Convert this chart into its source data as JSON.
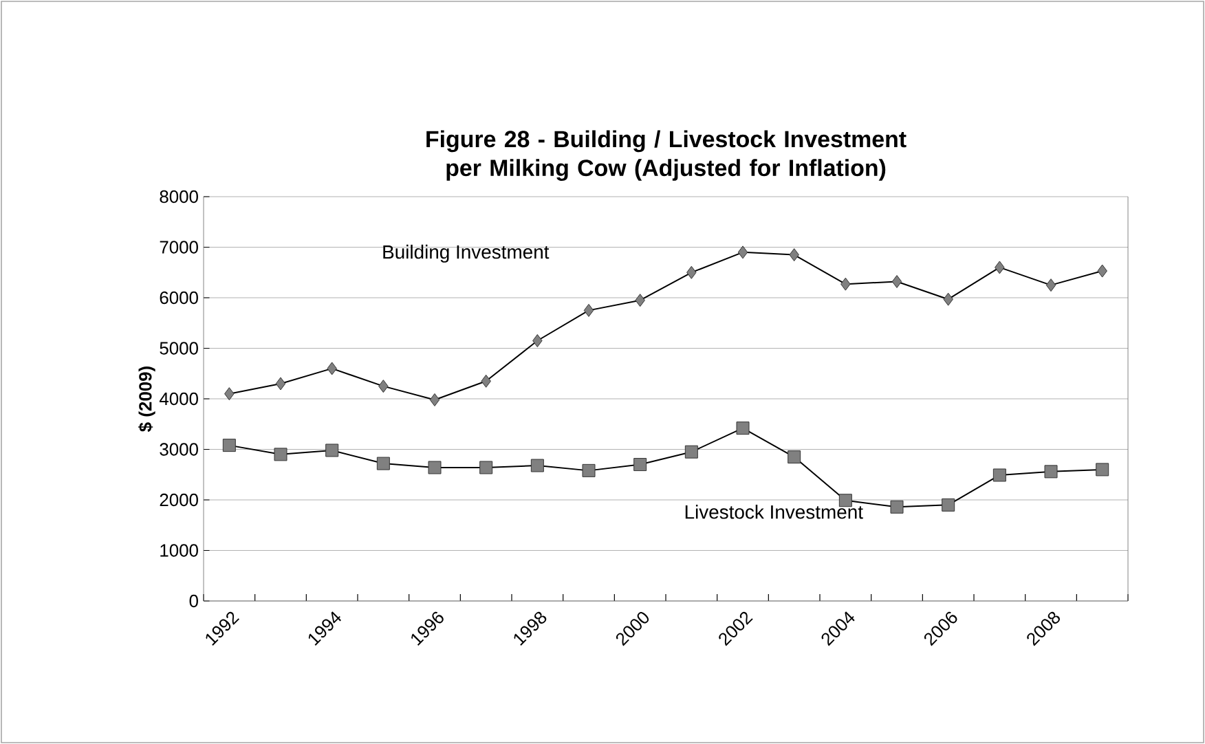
{
  "chart_data": {
    "type": "line",
    "title": "Figure 28 - Building / Livestock Investment per Milking Cow (Adjusted for Inflation)",
    "ylabel": "$ (2009)",
    "categories": [
      "1992",
      null,
      "1994",
      null,
      "1996",
      null,
      "1998",
      null,
      "2000",
      null,
      "2002",
      null,
      "2004",
      null,
      "2006",
      null,
      "2008",
      null
    ],
    "series": [
      {
        "name": "Building Investment",
        "color": "#808080",
        "marker": "diamond",
        "values": [
          4100,
          4300,
          4600,
          4250,
          3980,
          4350,
          5150,
          5750,
          5950,
          6500,
          6900,
          6850,
          6270,
          6320,
          5970,
          6600,
          6250,
          6530
        ]
      },
      {
        "name": "Livestock Investment",
        "color": "#808080",
        "marker": "square",
        "values": [
          3080,
          2900,
          2980,
          2720,
          2640,
          2640,
          2680,
          2580,
          2700,
          2950,
          3420,
          2850,
          1990,
          1860,
          1900,
          2490,
          2560,
          2600
        ]
      }
    ],
    "ylim": [
      0,
      8000
    ],
    "yticks": [
      0,
      1000,
      2000,
      3000,
      4000,
      5000,
      6000,
      7000,
      8000
    ],
    "grid": "y",
    "legend": false
  }
}
